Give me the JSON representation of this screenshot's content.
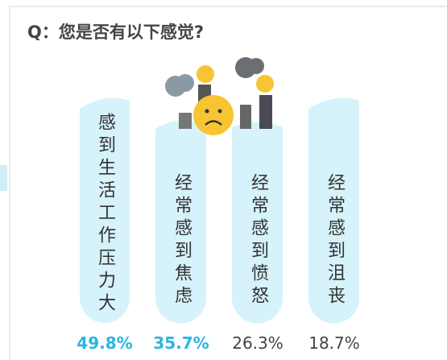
{
  "title": "Q：您是否有以下感觉?",
  "items": [
    {
      "label": "感到生活工作压力大",
      "value": "49.8%"
    },
    {
      "label": "经常感到焦虑",
      "value": "35.7%"
    },
    {
      "label": "经常感到愤怒",
      "value": "26.3%"
    },
    {
      "label": "经常感到沮丧",
      "value": "18.7%"
    }
  ]
}
